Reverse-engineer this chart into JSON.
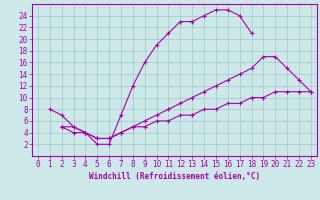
{
  "bg_color": "#cce8e8",
  "grid_color": "#aacccc",
  "line_color": "#aa00aa",
  "xlabel": "Windchill (Refroidissement éolien,°C)",
  "xlim": [
    -0.5,
    23.5
  ],
  "ylim": [
    0,
    26
  ],
  "xticks": [
    0,
    1,
    2,
    3,
    4,
    5,
    6,
    7,
    8,
    9,
    10,
    11,
    12,
    13,
    14,
    15,
    16,
    17,
    18,
    19,
    20,
    21,
    22,
    23
  ],
  "yticks": [
    2,
    4,
    6,
    8,
    10,
    12,
    14,
    16,
    18,
    20,
    22,
    24
  ],
  "curve1_x": [
    1,
    2,
    3,
    4,
    5,
    6,
    7,
    8,
    9,
    10,
    11,
    12,
    13,
    14,
    15,
    16,
    17,
    18
  ],
  "curve1_y": [
    8,
    7,
    5,
    4,
    2,
    2,
    7,
    12,
    16,
    19,
    21,
    23,
    23,
    24,
    25,
    25,
    24,
    21
  ],
  "curve2_x": [
    2,
    3,
    4,
    5,
    6,
    7,
    8,
    9,
    10,
    11,
    12,
    13,
    14,
    15,
    16,
    17,
    18,
    19,
    20,
    21,
    22,
    23
  ],
  "curve2_y": [
    5,
    5,
    4,
    3,
    3,
    4,
    5,
    6,
    7,
    8,
    9,
    10,
    11,
    12,
    13,
    14,
    15,
    17,
    17,
    15,
    13,
    11
  ],
  "curve3_x": [
    2,
    3,
    4,
    5,
    6,
    7,
    8,
    9,
    10,
    11,
    12,
    13,
    14,
    15,
    16,
    17,
    18,
    19,
    20,
    21,
    22,
    23
  ],
  "curve3_y": [
    5,
    4,
    4,
    3,
    3,
    4,
    5,
    5,
    6,
    6,
    7,
    7,
    8,
    8,
    9,
    9,
    10,
    10,
    11,
    11,
    11,
    11
  ],
  "font_size": 5.5,
  "font_family": "monospace"
}
